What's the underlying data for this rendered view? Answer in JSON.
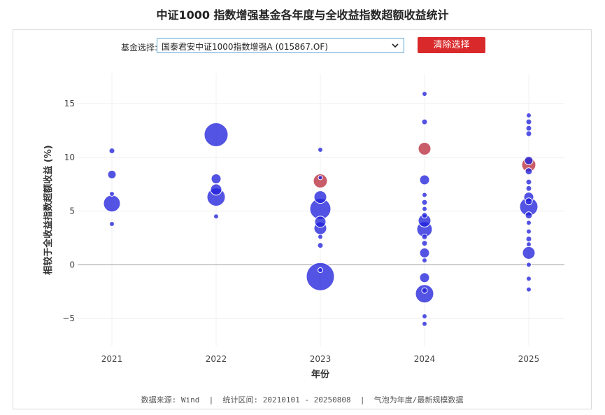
{
  "page": {
    "title": "中证1000 指数增强基金各年度与全收益指数超额收益统计"
  },
  "controls": {
    "select_label": "基金选择:",
    "selected_fund": "国泰君安中证1000指数增强A (015867.OF)",
    "clear_label": "清除选择"
  },
  "footer": {
    "text": "数据来源: Wind  |  统计区间: 20210101 - 20250808  |  气泡为年度/最新规模数据"
  },
  "colors": {
    "bubble": "#2222dd",
    "highlight": "#c0404f",
    "clear_button": "#d9292b"
  },
  "chart_data": {
    "type": "scatter",
    "xlabel": "年份",
    "ylabel": "相较于全收益指数超额收益 (%)",
    "categories": [
      "2021",
      "2022",
      "2023",
      "2024",
      "2025"
    ],
    "y_ticks": [
      -5,
      0,
      5,
      10,
      15
    ],
    "ylim": [
      -7.6,
      17.8
    ],
    "zero_line": true,
    "grid": true,
    "points": [
      {
        "x": "2021",
        "y": 10.6,
        "size": 4,
        "highlight": false
      },
      {
        "x": "2021",
        "y": 8.4,
        "size": 6,
        "highlight": false
      },
      {
        "x": "2021",
        "y": 6.6,
        "size": 3.5,
        "highlight": false
      },
      {
        "x": "2021",
        "y": 5.7,
        "size": 12,
        "highlight": false
      },
      {
        "x": "2021",
        "y": 3.8,
        "size": 3.5,
        "highlight": false
      },
      {
        "x": "2022",
        "y": 12.1,
        "size": 17,
        "highlight": false
      },
      {
        "x": "2022",
        "y": 8.0,
        "size": 7,
        "highlight": false
      },
      {
        "x": "2022",
        "y": 7.0,
        "size": 8,
        "highlight": false
      },
      {
        "x": "2022",
        "y": 6.3,
        "size": 13,
        "highlight": false
      },
      {
        "x": "2022",
        "y": 4.5,
        "size": 3.5,
        "highlight": false
      },
      {
        "x": "2023",
        "y": 10.7,
        "size": 3.5,
        "highlight": false
      },
      {
        "x": "2023",
        "y": 7.8,
        "size": 10,
        "highlight": true
      },
      {
        "x": "2023",
        "y": 8.1,
        "size": 3,
        "highlight": false
      },
      {
        "x": "2023",
        "y": 6.3,
        "size": 9,
        "highlight": false
      },
      {
        "x": "2023",
        "y": 5.2,
        "size": 15,
        "highlight": false
      },
      {
        "x": "2023",
        "y": 4.0,
        "size": 8,
        "highlight": false
      },
      {
        "x": "2023",
        "y": 3.4,
        "size": 9,
        "highlight": false
      },
      {
        "x": "2023",
        "y": 2.6,
        "size": 3.5,
        "highlight": false
      },
      {
        "x": "2023",
        "y": 1.8,
        "size": 4,
        "highlight": false
      },
      {
        "x": "2023",
        "y": -1.1,
        "size": 20,
        "highlight": false
      },
      {
        "x": "2023",
        "y": -0.5,
        "size": 3.5,
        "highlight": false
      },
      {
        "x": "2024",
        "y": 15.9,
        "size": 3.5,
        "highlight": false
      },
      {
        "x": "2024",
        "y": 13.3,
        "size": 4,
        "highlight": false
      },
      {
        "x": "2024",
        "y": 10.8,
        "size": 9,
        "highlight": true
      },
      {
        "x": "2024",
        "y": 7.9,
        "size": 7,
        "highlight": false
      },
      {
        "x": "2024",
        "y": 6.5,
        "size": 3.5,
        "highlight": false
      },
      {
        "x": "2024",
        "y": 5.8,
        "size": 4,
        "highlight": false
      },
      {
        "x": "2024",
        "y": 5.2,
        "size": 3.5,
        "highlight": false
      },
      {
        "x": "2024",
        "y": 4.6,
        "size": 4,
        "highlight": false
      },
      {
        "x": "2024",
        "y": 4.1,
        "size": 9,
        "highlight": false
      },
      {
        "x": "2024",
        "y": 3.3,
        "size": 11,
        "highlight": false
      },
      {
        "x": "2024",
        "y": 2.6,
        "size": 4,
        "highlight": false
      },
      {
        "x": "2024",
        "y": 2.0,
        "size": 4,
        "highlight": false
      },
      {
        "x": "2024",
        "y": 1.1,
        "size": 7,
        "highlight": false
      },
      {
        "x": "2024",
        "y": 0.4,
        "size": 3.5,
        "highlight": false
      },
      {
        "x": "2024",
        "y": -1.2,
        "size": 7,
        "highlight": false
      },
      {
        "x": "2024",
        "y": -2.4,
        "size": 4,
        "highlight": false
      },
      {
        "x": "2024",
        "y": -2.7,
        "size": 13,
        "highlight": false
      },
      {
        "x": "2024",
        "y": -4.8,
        "size": 3.5,
        "highlight": false
      },
      {
        "x": "2024",
        "y": -5.5,
        "size": 3.5,
        "highlight": false
      },
      {
        "x": "2025",
        "y": 13.9,
        "size": 3.5,
        "highlight": false
      },
      {
        "x": "2025",
        "y": 13.3,
        "size": 4,
        "highlight": false
      },
      {
        "x": "2025",
        "y": 12.7,
        "size": 4,
        "highlight": false
      },
      {
        "x": "2025",
        "y": 12.2,
        "size": 4,
        "highlight": false
      },
      {
        "x": "2025",
        "y": 9.7,
        "size": 6,
        "highlight": false
      },
      {
        "x": "2025",
        "y": 9.3,
        "size": 10,
        "highlight": true
      },
      {
        "x": "2025",
        "y": 8.7,
        "size": 5,
        "highlight": false
      },
      {
        "x": "2025",
        "y": 7.7,
        "size": 4,
        "highlight": false
      },
      {
        "x": "2025",
        "y": 7.1,
        "size": 4,
        "highlight": false
      },
      {
        "x": "2025",
        "y": 6.3,
        "size": 7,
        "highlight": false
      },
      {
        "x": "2025",
        "y": 5.9,
        "size": 5,
        "highlight": false
      },
      {
        "x": "2025",
        "y": 5.4,
        "size": 13,
        "highlight": false
      },
      {
        "x": "2025",
        "y": 4.6,
        "size": 5,
        "highlight": false
      },
      {
        "x": "2025",
        "y": 3.9,
        "size": 3.5,
        "highlight": false
      },
      {
        "x": "2025",
        "y": 3.1,
        "size": 3.5,
        "highlight": false
      },
      {
        "x": "2025",
        "y": 2.4,
        "size": 4,
        "highlight": false
      },
      {
        "x": "2025",
        "y": 1.9,
        "size": 3.5,
        "highlight": false
      },
      {
        "x": "2025",
        "y": 1.1,
        "size": 9,
        "highlight": false
      },
      {
        "x": "2025",
        "y": 0.0,
        "size": 3.5,
        "highlight": false
      },
      {
        "x": "2025",
        "y": -1.3,
        "size": 3.5,
        "highlight": false
      },
      {
        "x": "2025",
        "y": -2.3,
        "size": 3.5,
        "highlight": false
      }
    ]
  }
}
